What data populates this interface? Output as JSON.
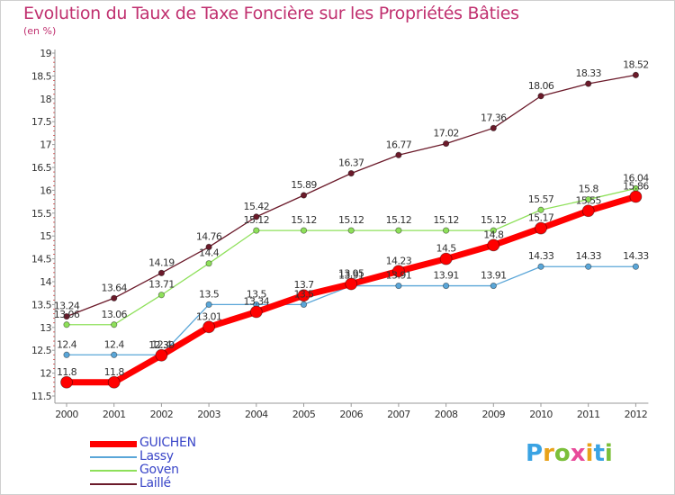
{
  "title": "Evolution du Taux de Taxe Foncière sur les Propriétés Bâties",
  "unit": "(en %)",
  "logo": {
    "text": "Proxiti",
    "letter_colors": [
      "#3aa3e3",
      "#e8a21a",
      "#7bbf3a",
      "#e84a9a",
      "#e8a21a",
      "#3aa3e3",
      "#7bbf3a"
    ]
  },
  "chart_data": {
    "type": "line",
    "x": [
      "2000",
      "2001",
      "2002",
      "2003",
      "2004",
      "2005",
      "2006",
      "2007",
      "2008",
      "2009",
      "2010",
      "2011",
      "2012"
    ],
    "ylim": [
      11.5,
      19
    ],
    "yticks": [
      "11.5",
      "12",
      "12.5",
      "13",
      "13.5",
      "14",
      "14.5",
      "15",
      "15.5",
      "16",
      "16.5",
      "17",
      "17.5",
      "18",
      "18.5",
      "19"
    ],
    "grid": false,
    "legend_position": "bottom-left",
    "series": [
      {
        "name": "Laillé",
        "color": "#6b1a2a",
        "width": 1.3,
        "marker": 3.2,
        "values": [
          13.24,
          13.64,
          14.19,
          14.76,
          15.42,
          15.89,
          16.37,
          16.77,
          17.02,
          17.36,
          18.06,
          18.33,
          18.52
        ],
        "labels": [
          "13.24",
          "13.64",
          "14.19",
          "14.76",
          "15.42",
          "15.89",
          "16.37",
          "16.77",
          "17.02",
          "17.36",
          "18.06",
          "18.33",
          "18.52"
        ]
      },
      {
        "name": "Goven",
        "color": "#8ee05a",
        "width": 1.3,
        "marker": 3.2,
        "values": [
          13.06,
          13.06,
          13.71,
          14.4,
          15.12,
          15.12,
          15.12,
          15.12,
          15.12,
          15.12,
          15.57,
          15.8,
          16.04
        ],
        "labels": [
          "13.06",
          "13.06",
          "13.71",
          "14.4",
          "15.12",
          "15.12",
          "15.12",
          "15.12",
          "15.12",
          "15.12",
          "15.57",
          "15.8",
          "16.04"
        ]
      },
      {
        "name": "Lassy",
        "color": "#5aa6d8",
        "width": 1.3,
        "marker": 3.2,
        "values": [
          12.4,
          12.4,
          12.4,
          13.5,
          13.5,
          13.5,
          13.91,
          13.91,
          13.91,
          13.91,
          14.33,
          14.33,
          14.33
        ],
        "labels": [
          "12.4",
          "12.4",
          "12.4",
          "13.5",
          "13.5",
          "13.5",
          "13.91",
          "13.91",
          "13.91",
          "13.91",
          "14.33",
          "14.33",
          "14.33"
        ]
      },
      {
        "name": "GUICHEN",
        "color": "#ff0000",
        "width": 7,
        "marker": 6.5,
        "values": [
          11.8,
          11.8,
          12.39,
          13.01,
          13.34,
          13.7,
          13.95,
          14.23,
          14.5,
          14.8,
          15.17,
          15.55,
          15.86
        ],
        "labels": [
          "11.8",
          "11.8",
          "12.39",
          "13.01",
          "13.34",
          "13.7",
          "13.95",
          "14.23",
          "14.5",
          "14.8",
          "15.17",
          "15.55",
          "15.86"
        ]
      }
    ],
    "legend": [
      {
        "name": "GUICHEN",
        "color": "#ff0000",
        "thickness": 7
      },
      {
        "name": "Lassy",
        "color": "#5aa6d8",
        "thickness": 2
      },
      {
        "name": "Goven",
        "color": "#8ee05a",
        "thickness": 2
      },
      {
        "name": "Laillé",
        "color": "#6b1a2a",
        "thickness": 2
      }
    ]
  }
}
